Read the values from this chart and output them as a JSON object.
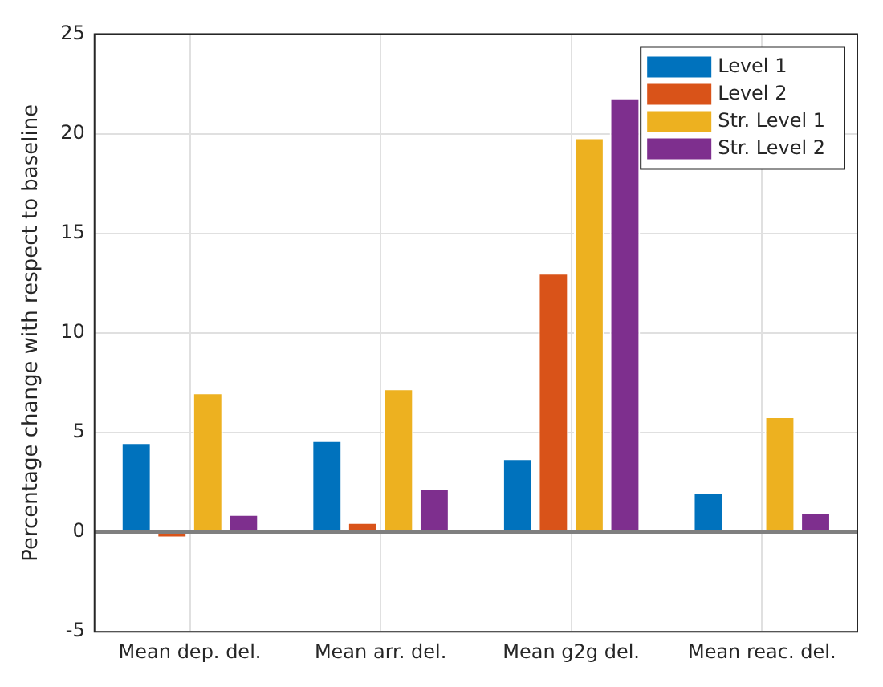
{
  "chart_data": {
    "type": "bar",
    "ylabel": "Percentage change with respect to baseline",
    "categories": [
      "Mean dep. del.",
      "Mean arr. del.",
      "Mean g2g del.",
      "Mean reac. del."
    ],
    "series": [
      {
        "name": "Level 1",
        "color": "#0072bd",
        "values": [
          4.5,
          4.6,
          3.7,
          2.0
        ]
      },
      {
        "name": "Level 2",
        "color": "#d95319",
        "values": [
          -0.3,
          0.5,
          13.0,
          0.1
        ]
      },
      {
        "name": "Str. Level 1",
        "color": "#edb120",
        "values": [
          7.0,
          7.2,
          19.8,
          5.8
        ]
      },
      {
        "name": "Str. Level 2",
        "color": "#7e2f8e",
        "values": [
          0.9,
          2.2,
          21.8,
          1.0
        ]
      }
    ],
    "ylim": [
      -5,
      25
    ],
    "yticks": [
      -5,
      0,
      5,
      10,
      15,
      20,
      25
    ],
    "grid": true,
    "legend": "top right"
  }
}
